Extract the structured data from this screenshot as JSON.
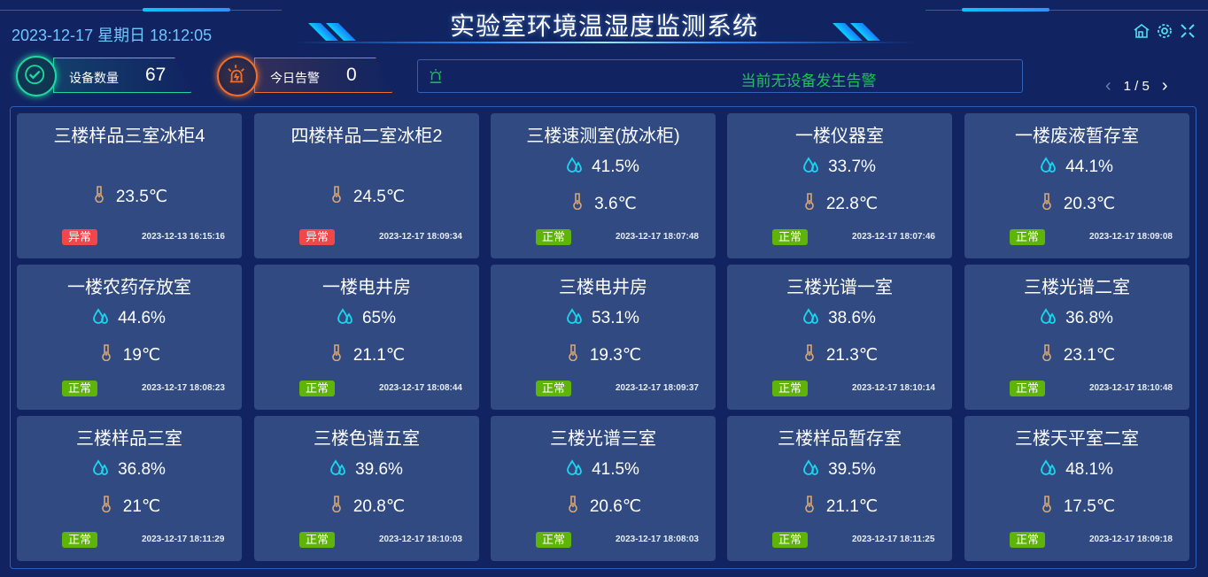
{
  "header": {
    "title": "实验室环境温湿度监测系统",
    "datetime": "2023-12-17 星期日 18:12:05",
    "icons": [
      "home-icon",
      "gear-icon",
      "fullscreen-icon"
    ]
  },
  "stats": [
    {
      "label": "设备数量",
      "value": "67",
      "color": "#1fd8a0",
      "icon": "check-cycle-icon"
    },
    {
      "label": "今日告警",
      "value": "0",
      "color": "#f0702a",
      "icon": "alarm-light-icon"
    }
  ],
  "alarm": {
    "message": "当前无设备发生告警",
    "color": "#1fc15a",
    "icon": "alarm-light-icon"
  },
  "pager": {
    "text": "1 / 5"
  },
  "colors": {
    "normal": "#5fb40a",
    "abnormal": "#f0474a",
    "humidity": "#19d6ee",
    "temperature": "#d8a772",
    "card": "#314b82"
  },
  "devices": [
    {
      "name": "三楼样品三室冰柜4",
      "humidity": null,
      "temperature": "23.5℃",
      "status": "异常",
      "time": "2023-12-13 16:15:16"
    },
    {
      "name": "四楼样品二室冰柜2",
      "humidity": null,
      "temperature": "24.5℃",
      "status": "异常",
      "time": "2023-12-17 18:09:34"
    },
    {
      "name": "三楼速测室(放冰柜)",
      "humidity": "41.5%",
      "temperature": "3.6℃",
      "status": "正常",
      "time": "2023-12-17 18:07:48"
    },
    {
      "name": "一楼仪器室",
      "humidity": "33.7%",
      "temperature": "22.8℃",
      "status": "正常",
      "time": "2023-12-17 18:07:46"
    },
    {
      "name": "一楼废液暂存室",
      "humidity": "44.1%",
      "temperature": "20.3℃",
      "status": "正常",
      "time": "2023-12-17 18:09:08"
    },
    {
      "name": "一楼农药存放室",
      "humidity": "44.6%",
      "temperature": "19℃",
      "status": "正常",
      "time": "2023-12-17 18:08:23"
    },
    {
      "name": "一楼电井房",
      "humidity": "65%",
      "temperature": "21.1℃",
      "status": "正常",
      "time": "2023-12-17 18:08:44"
    },
    {
      "name": "三楼电井房",
      "humidity": "53.1%",
      "temperature": "19.3℃",
      "status": "正常",
      "time": "2023-12-17 18:09:37"
    },
    {
      "name": "三楼光谱一室",
      "humidity": "38.6%",
      "temperature": "21.3℃",
      "status": "正常",
      "time": "2023-12-17 18:10:14"
    },
    {
      "name": "三楼光谱二室",
      "humidity": "36.8%",
      "temperature": "23.1℃",
      "status": "正常",
      "time": "2023-12-17 18:10:48"
    },
    {
      "name": "三楼样品三室",
      "humidity": "36.8%",
      "temperature": "21℃",
      "status": "正常",
      "time": "2023-12-17 18:11:29"
    },
    {
      "name": "三楼色谱五室",
      "humidity": "39.6%",
      "temperature": "20.8℃",
      "status": "正常",
      "time": "2023-12-17 18:10:03"
    },
    {
      "name": "三楼光谱三室",
      "humidity": "41.5%",
      "temperature": "20.6℃",
      "status": "正常",
      "time": "2023-12-17 18:08:03"
    },
    {
      "name": "三楼样品暂存室",
      "humidity": "39.5%",
      "temperature": "21.1℃",
      "status": "正常",
      "time": "2023-12-17 18:11:25"
    },
    {
      "name": "三楼天平室二室",
      "humidity": "48.1%",
      "temperature": "17.5℃",
      "status": "正常",
      "time": "2023-12-17 18:09:18"
    }
  ]
}
